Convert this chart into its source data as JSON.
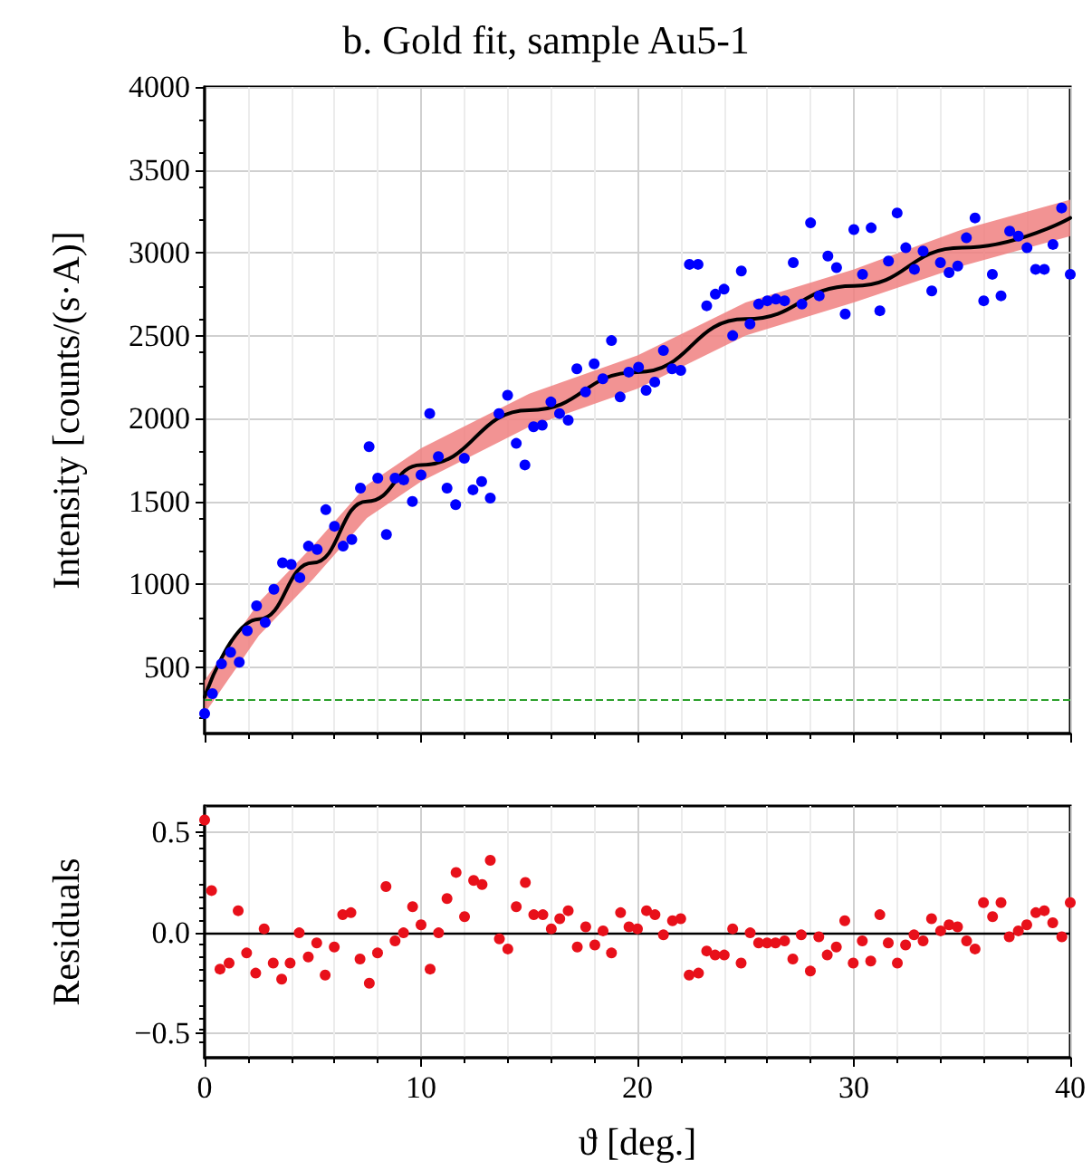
{
  "chart_data": [
    {
      "type": "scatter",
      "title": "b. Gold fit, sample Au5-1",
      "ylabel": "Intensity [counts/(s·A)]",
      "xlim": [
        0,
        40
      ],
      "xticks": [
        0,
        10,
        20,
        30,
        40
      ],
      "ylim": [
        100,
        4000
      ],
      "yticks": [
        500,
        1000,
        1500,
        2000,
        2500,
        3000,
        3500,
        4000
      ],
      "grid": true,
      "tick_labels": "y",
      "ref_lines": [
        {
          "axis": "y",
          "value": 300,
          "color": "#2ca02c",
          "line_style": "dashed"
        }
      ],
      "series": [
        {
          "marker": "circle",
          "color": "#0000ff",
          "x": [
            0,
            0.36,
            0.78,
            1.2,
            1.6,
            1.97,
            2.4,
            2.8,
            3.2,
            3.6,
            4.0,
            4.4,
            4.8,
            5.2,
            5.6,
            6.0,
            6.4,
            6.8,
            7.2,
            7.6,
            8.0,
            8.4,
            8.8,
            9.2,
            9.6,
            10.0,
            10.4,
            10.8,
            11.2,
            11.6,
            12.0,
            12.4,
            12.8,
            13.2,
            13.6,
            14.0,
            14.4,
            14.8,
            15.2,
            15.6,
            16.0,
            16.4,
            16.8,
            17.2,
            17.6,
            18.0,
            18.4,
            18.8,
            19.2,
            19.6,
            20.05,
            20.4,
            20.8,
            21.2,
            21.6,
            22.0,
            22.4,
            22.8,
            23.2,
            23.6,
            24.0,
            24.4,
            24.8,
            25.2,
            25.6,
            26.0,
            26.4,
            26.8,
            27.2,
            27.6,
            28.0,
            28.4,
            28.8,
            29.2,
            29.6,
            30.0,
            30.4,
            30.8,
            31.2,
            31.6,
            32.0,
            32.4,
            32.8,
            33.2,
            33.6,
            34.0,
            34.4,
            34.8,
            35.2,
            35.6,
            36.0,
            36.4,
            36.8,
            37.2,
            37.6,
            38.0,
            38.4,
            38.8,
            39.2,
            39.6,
            40.0
          ],
          "values": [
            220,
            340,
            520,
            590,
            530,
            720,
            870,
            770,
            970,
            1130,
            1120,
            1040,
            1230,
            1210,
            1450,
            1350,
            1230,
            1270,
            1580,
            1830,
            1640,
            1300,
            1640,
            1630,
            1500,
            1660,
            2030,
            1770,
            1580,
            1480,
            1760,
            1570,
            1620,
            1520,
            2030,
            2140,
            1850,
            1720,
            1950,
            1960,
            2100,
            2030,
            1990,
            2300,
            2160,
            2330,
            2240,
            2470,
            2130,
            2280,
            2310,
            2170,
            2220,
            2410,
            2300,
            2290,
            2930,
            2930,
            2680,
            2750,
            2780,
            2500,
            2890,
            2570,
            2690,
            2710,
            2720,
            2710,
            2940,
            2690,
            3180,
            2740,
            2980,
            2910,
            2630,
            3140,
            2870,
            3150,
            2650,
            2950,
            3240,
            3030,
            2900,
            3010,
            2770,
            2940,
            2880,
            2920,
            3090,
            3210,
            2710,
            2870,
            2740,
            3130,
            3100,
            3030,
            2900,
            2900,
            3050,
            3270,
            2870
          ]
        },
        {
          "type": "line",
          "marker": "none",
          "line_style": "solid",
          "color": "#000000",
          "x": [
            0,
            2.5,
            5,
            7.5,
            10,
            15,
            20,
            25,
            30,
            35,
            40
          ],
          "values": [
            320,
            790,
            1130,
            1500,
            1720,
            2050,
            2280,
            2600,
            2800,
            3030,
            3210
          ],
          "lower": [
            220,
            690,
            1030,
            1400,
            1620,
            1950,
            2180,
            2500,
            2700,
            2920,
            3100
          ],
          "upper": [
            420,
            890,
            1230,
            1600,
            1820,
            2150,
            2380,
            2700,
            2900,
            3140,
            3320
          ]
        }
      ]
    },
    {
      "type": "scatter",
      "xlabel": "ϑ [deg.]",
      "ylabel": "Residuals",
      "xlim": [
        0,
        40
      ],
      "xticks": [
        0,
        10,
        20,
        30,
        40
      ],
      "ylim": [
        -0.62,
        0.63
      ],
      "yticks": [
        {
          "value": -0.5,
          "label": "−0.5"
        },
        {
          "value": 0,
          "label": "0.0"
        },
        {
          "value": 0.5,
          "label": "0.5"
        }
      ],
      "grid": true,
      "marker": "circle",
      "ref_lines": [
        {
          "axis": "y",
          "value": 0,
          "color": "#000000",
          "line_style": "solid"
        }
      ],
      "series": [
        {
          "color": "#e8101a",
          "x": [
            0,
            0.32,
            0.71,
            1.13,
            1.55,
            1.94,
            2.36,
            2.75,
            3.17,
            3.56,
            3.95,
            4.37,
            4.79,
            5.18,
            5.57,
            5.99,
            6.38,
            6.76,
            7.18,
            7.61,
            7.99,
            8.38,
            8.8,
            9.19,
            9.61,
            10.0,
            10.42,
            10.81,
            11.2,
            11.62,
            12.01,
            12.43,
            12.82,
            13.2,
            13.62,
            14.01,
            14.4,
            14.82,
            15.21,
            15.63,
            16.02,
            16.41,
            16.8,
            17.22,
            17.61,
            18.03,
            18.41,
            18.8,
            19.22,
            19.61,
            20.0,
            20.42,
            20.81,
            21.2,
            21.62,
            22.0,
            22.39,
            22.82,
            23.2,
            23.59,
            24.01,
            24.4,
            24.79,
            25.21,
            25.6,
            25.99,
            26.38,
            26.8,
            27.18,
            27.57,
            27.99,
            28.38,
            28.77,
            29.19,
            29.58,
            29.97,
            30.39,
            30.78,
            31.2,
            31.59,
            32.01,
            32.39,
            32.78,
            33.2,
            33.59,
            34.01,
            34.4,
            34.79,
            35.21,
            35.6,
            35.99,
            36.41,
            36.8,
            37.18,
            37.6,
            37.99,
            38.41,
            38.8,
            39.19,
            39.61,
            40.0
          ],
          "values": [
            0.56,
            0.21,
            -0.18,
            -0.15,
            0.11,
            -0.1,
            -0.2,
            0.02,
            -0.15,
            -0.23,
            -0.15,
            0.0,
            -0.12,
            -0.05,
            -0.21,
            -0.07,
            0.09,
            0.1,
            -0.13,
            -0.25,
            -0.1,
            0.23,
            -0.04,
            0.0,
            0.13,
            0.04,
            -0.18,
            0.0,
            0.17,
            0.3,
            0.08,
            0.26,
            0.24,
            0.36,
            -0.03,
            -0.08,
            0.13,
            0.25,
            0.09,
            0.09,
            0.02,
            0.07,
            0.11,
            -0.07,
            0.03,
            -0.06,
            0.01,
            -0.1,
            0.1,
            0.03,
            0.02,
            0.11,
            0.09,
            -0.01,
            0.06,
            0.07,
            -0.21,
            -0.2,
            -0.09,
            -0.11,
            -0.11,
            0.02,
            -0.15,
            0.0,
            -0.05,
            -0.05,
            -0.05,
            -0.04,
            -0.13,
            -0.01,
            -0.19,
            -0.02,
            -0.11,
            -0.07,
            0.06,
            -0.15,
            -0.04,
            -0.14,
            0.09,
            -0.05,
            -0.15,
            -0.06,
            -0.01,
            -0.04,
            0.07,
            0.01,
            0.04,
            0.03,
            -0.04,
            -0.08,
            0.15,
            0.08,
            0.15,
            -0.02,
            0.01,
            0.04,
            0.1,
            0.11,
            0.05,
            -0.02,
            0.15
          ]
        }
      ]
    }
  ]
}
